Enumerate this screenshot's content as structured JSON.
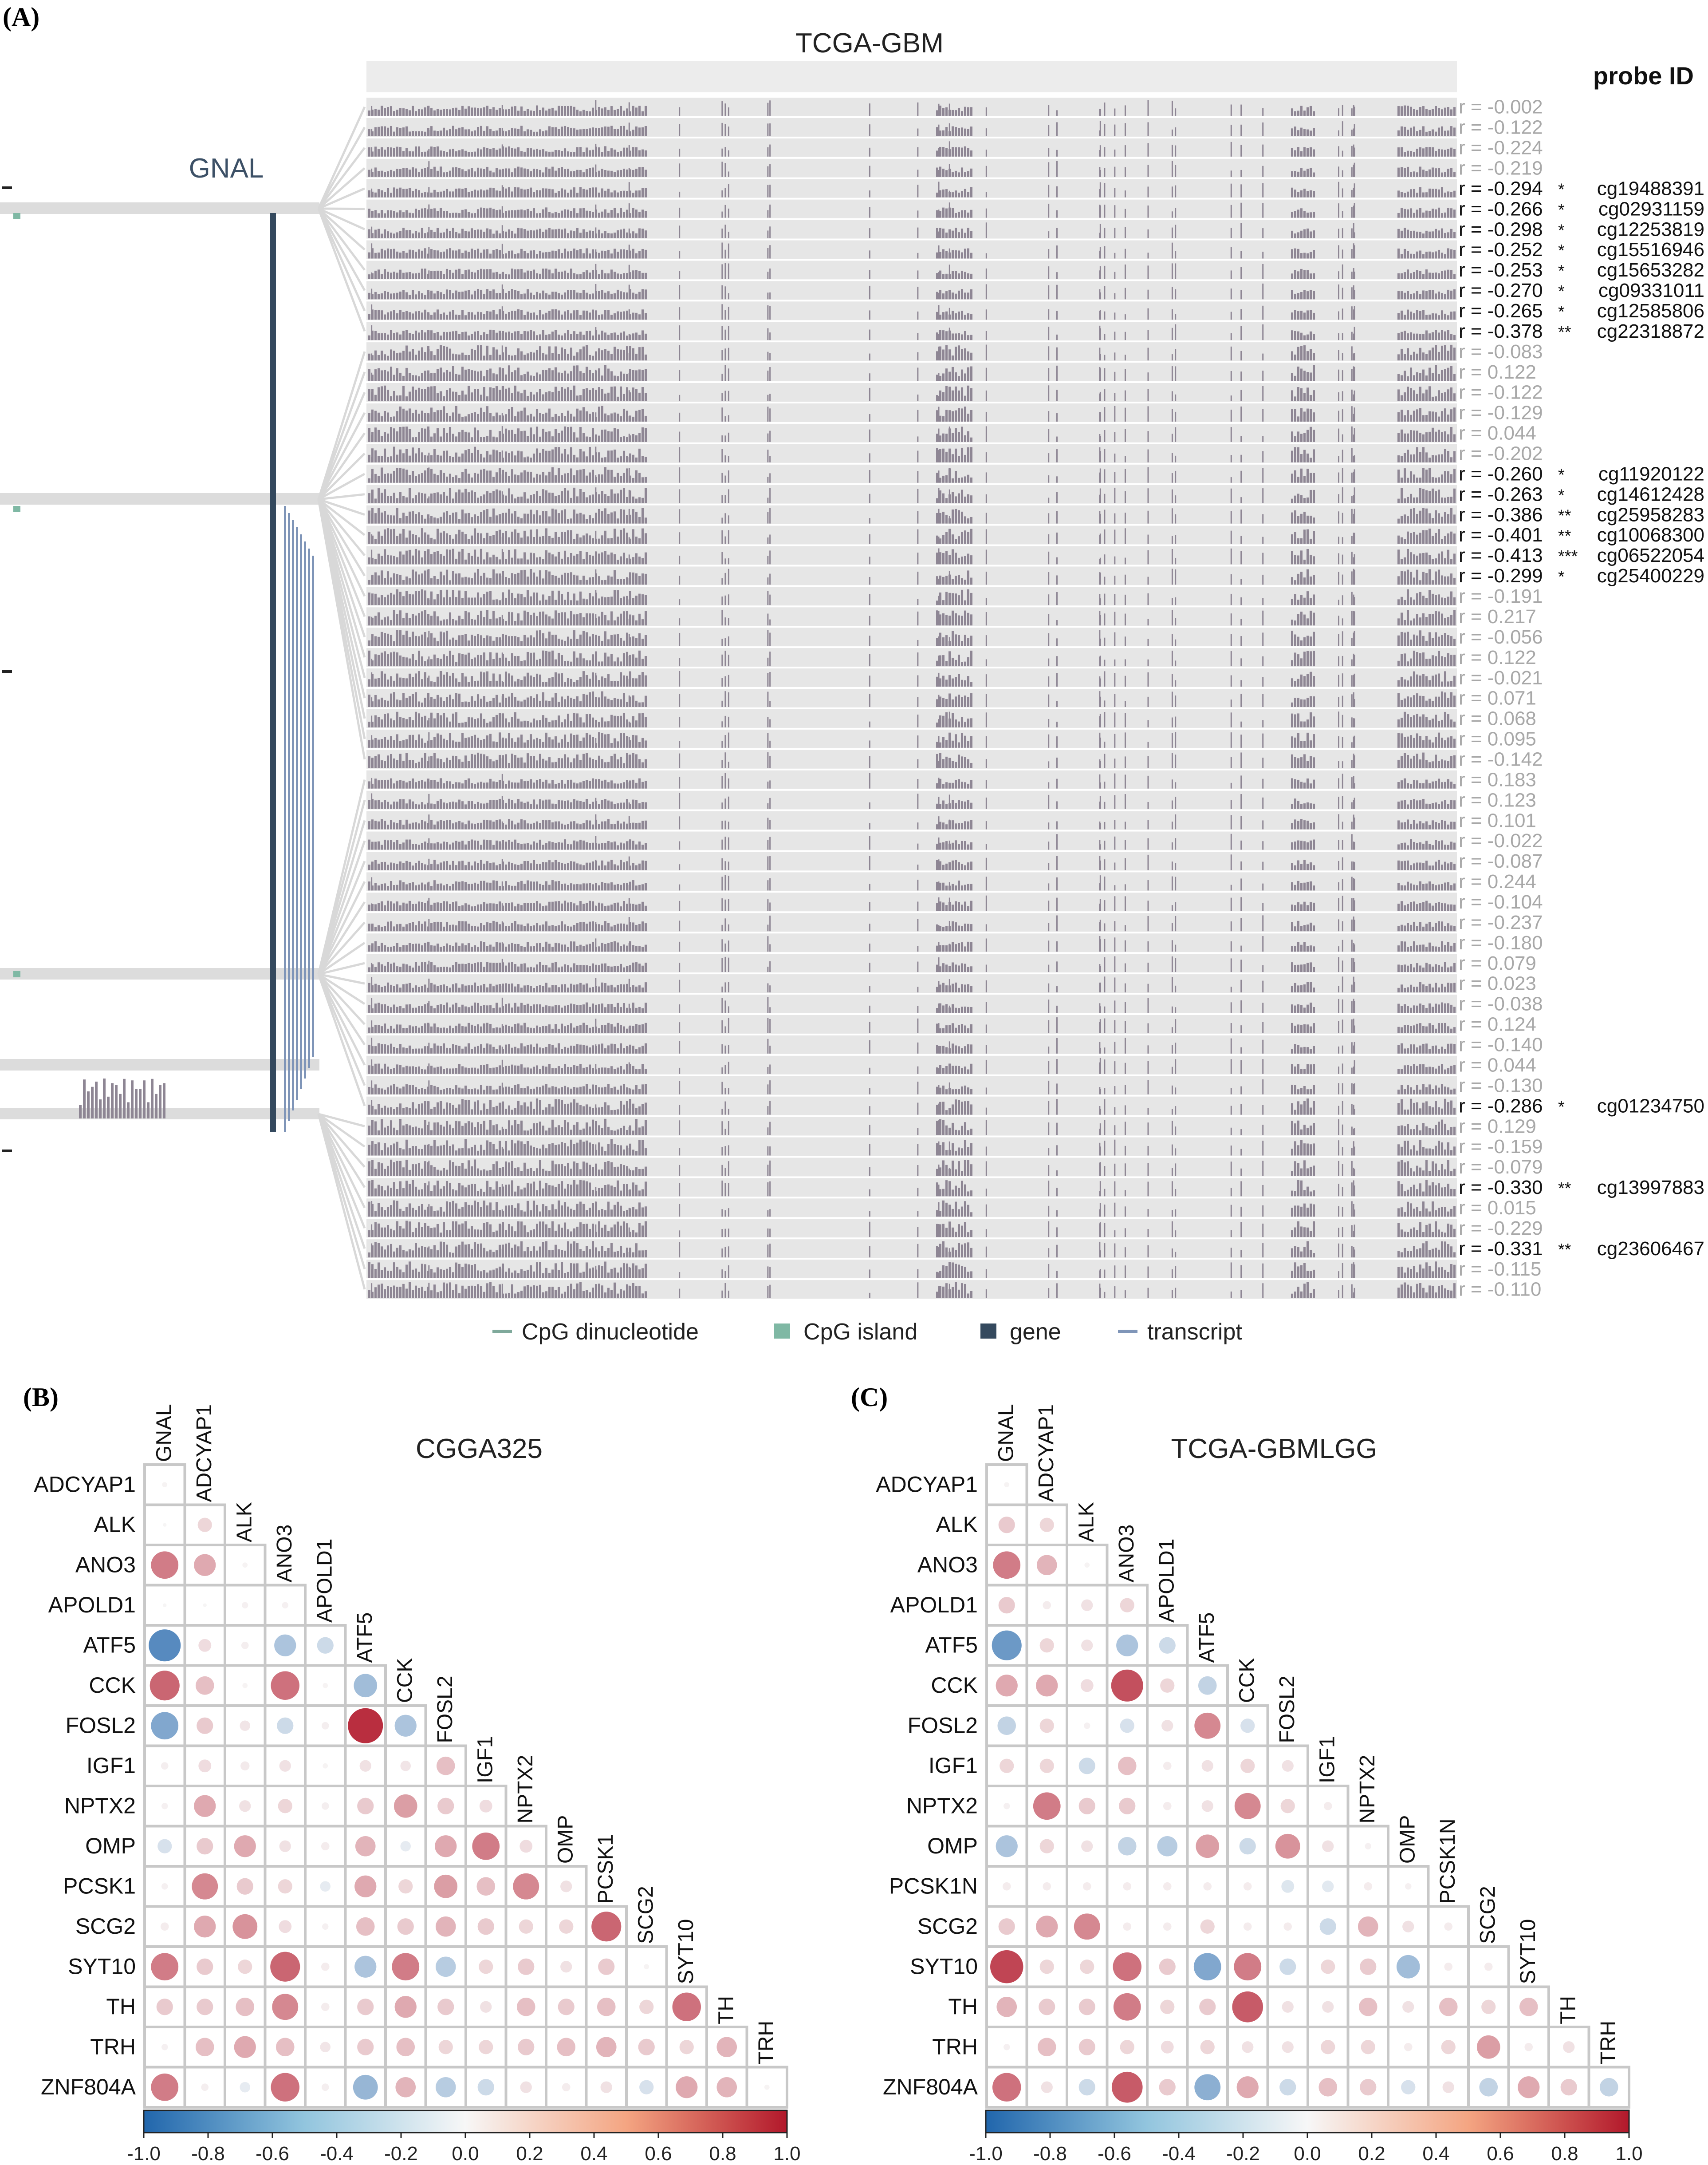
{
  "figure": {
    "panel_a": {
      "label": "(A)",
      "title": "TCGA-GBM",
      "gene_label": "GNAL",
      "probe_header": "probe ID",
      "legend": [
        {
          "label": "CpG dinucleotide",
          "color": "#7fa99b"
        },
        {
          "label": "CpG island",
          "color": "#7fb8a4"
        },
        {
          "label": "gene",
          "color": "#34495e"
        },
        {
          "label": "transcript",
          "color": "#7f95b8"
        }
      ],
      "rows": [
        {
          "r": "r = -0.002",
          "sig": "",
          "probe": ""
        },
        {
          "r": "r = -0.122",
          "sig": "",
          "probe": ""
        },
        {
          "r": "r = -0.224",
          "sig": "",
          "probe": ""
        },
        {
          "r": "r = -0.219",
          "sig": "",
          "probe": ""
        },
        {
          "r": "r = -0.294",
          "sig": "*",
          "probe": "cg19488391"
        },
        {
          "r": "r = -0.266",
          "sig": "*",
          "probe": "cg02931159"
        },
        {
          "r": "r = -0.298",
          "sig": "*",
          "probe": "cg12253819"
        },
        {
          "r": "r = -0.252",
          "sig": "*",
          "probe": "cg15516946"
        },
        {
          "r": "r = -0.253",
          "sig": "*",
          "probe": "cg15653282"
        },
        {
          "r": "r = -0.270",
          "sig": "*",
          "probe": "cg09331011"
        },
        {
          "r": "r = -0.265",
          "sig": "*",
          "probe": "cg12585806"
        },
        {
          "r": "r = -0.378",
          "sig": "**",
          "probe": "cg22318872"
        },
        {
          "r": "r = -0.083",
          "sig": "",
          "probe": ""
        },
        {
          "r": "r = 0.122",
          "sig": "",
          "probe": ""
        },
        {
          "r": "r = -0.122",
          "sig": "",
          "probe": ""
        },
        {
          "r": "r = -0.129",
          "sig": "",
          "probe": ""
        },
        {
          "r": "r = 0.044",
          "sig": "",
          "probe": ""
        },
        {
          "r": "r = -0.202",
          "sig": "",
          "probe": ""
        },
        {
          "r": "r = -0.260",
          "sig": "*",
          "probe": "cg11920122"
        },
        {
          "r": "r = -0.263",
          "sig": "*",
          "probe": "cg14612428"
        },
        {
          "r": "r = -0.386",
          "sig": "**",
          "probe": "cg25958283"
        },
        {
          "r": "r = -0.401",
          "sig": "**",
          "probe": "cg10068300"
        },
        {
          "r": "r = -0.413",
          "sig": "***",
          "probe": "cg06522054"
        },
        {
          "r": "r = -0.299",
          "sig": "*",
          "probe": "cg25400229"
        },
        {
          "r": "r = -0.191",
          "sig": "",
          "probe": ""
        },
        {
          "r": "r = 0.217",
          "sig": "",
          "probe": ""
        },
        {
          "r": "r = -0.056",
          "sig": "",
          "probe": ""
        },
        {
          "r": "r = 0.122",
          "sig": "",
          "probe": ""
        },
        {
          "r": "r = -0.021",
          "sig": "",
          "probe": ""
        },
        {
          "r": "r = 0.071",
          "sig": "",
          "probe": ""
        },
        {
          "r": "r = 0.068",
          "sig": "",
          "probe": ""
        },
        {
          "r": "r = 0.095",
          "sig": "",
          "probe": ""
        },
        {
          "r": "r = -0.142",
          "sig": "",
          "probe": ""
        },
        {
          "r": "r = 0.183",
          "sig": "",
          "probe": ""
        },
        {
          "r": "r = 0.123",
          "sig": "",
          "probe": ""
        },
        {
          "r": "r = 0.101",
          "sig": "",
          "probe": ""
        },
        {
          "r": "r = -0.022",
          "sig": "",
          "probe": ""
        },
        {
          "r": "r = -0.087",
          "sig": "",
          "probe": ""
        },
        {
          "r": "r = 0.244",
          "sig": "",
          "probe": ""
        },
        {
          "r": "r = -0.104",
          "sig": "",
          "probe": ""
        },
        {
          "r": "r = -0.237",
          "sig": "",
          "probe": ""
        },
        {
          "r": "r = -0.180",
          "sig": "",
          "probe": ""
        },
        {
          "r": "r = 0.079",
          "sig": "",
          "probe": ""
        },
        {
          "r": "r = 0.023",
          "sig": "",
          "probe": ""
        },
        {
          "r": "r = -0.038",
          "sig": "",
          "probe": ""
        },
        {
          "r": "r = 0.124",
          "sig": "",
          "probe": ""
        },
        {
          "r": "r = -0.140",
          "sig": "",
          "probe": ""
        },
        {
          "r": "r = 0.044",
          "sig": "",
          "probe": ""
        },
        {
          "r": "r = -0.130",
          "sig": "",
          "probe": ""
        },
        {
          "r": "r = -0.286",
          "sig": "*",
          "probe": "cg01234750"
        },
        {
          "r": "r = 0.129",
          "sig": "",
          "probe": ""
        },
        {
          "r": "r = -0.159",
          "sig": "",
          "probe": ""
        },
        {
          "r": "r = -0.079",
          "sig": "",
          "probe": ""
        },
        {
          "r": "r = -0.330",
          "sig": "**",
          "probe": "cg13997883"
        },
        {
          "r": "r = 0.015",
          "sig": "",
          "probe": ""
        },
        {
          "r": "r = -0.229",
          "sig": "",
          "probe": ""
        },
        {
          "r": "r = -0.331",
          "sig": "**",
          "probe": "cg23606467"
        },
        {
          "r": "r = -0.115",
          "sig": "",
          "probe": ""
        },
        {
          "r": "r = -0.110",
          "sig": "",
          "probe": ""
        }
      ]
    },
    "colors": {
      "negative": "#2166ac",
      "neutral": "#f7f7f7",
      "positive": "#b2182b",
      "track_gray": "#e6e6e6",
      "bar_gray": "#8e8694",
      "grid": "#c8c8c8"
    },
    "colorbar_ticks": [
      "-1.0",
      "-0.8",
      "-0.6",
      "-0.4",
      "-0.2",
      "0.0",
      "0.2",
      "0.4",
      "0.6",
      "0.8",
      "1.0"
    ]
  },
  "chart_data": [
    {
      "type": "heatmap",
      "panel": "(B)",
      "title": "CGGA325",
      "colorbar_range": [
        -1,
        1
      ],
      "column_labels": [
        "GNAL",
        "ADCYAP1",
        "ALK",
        "ANO3",
        "APOLD1",
        "ATF5",
        "CCK",
        "FOSL2",
        "IGF1",
        "NPTX2",
        "OMP",
        "PCSK1",
        "SCG2",
        "SYT10",
        "TH",
        "TRH"
      ],
      "row_labels": [
        "ADCYAP1",
        "ALK",
        "ANO3",
        "APOLD1",
        "ATF5",
        "CCK",
        "FOSL2",
        "IGF1",
        "NPTX2",
        "OMP",
        "PCSK1",
        "SCG2",
        "SYT10",
        "TH",
        "TRH",
        "ZNF804A"
      ],
      "values": [
        [
          0.02
        ],
        [
          0.01,
          0.15
        ],
        [
          0.55,
          0.35,
          0.02
        ],
        [
          0.01,
          0.01,
          0.03,
          0.03
        ],
        [
          -0.75,
          0.12,
          0.04,
          -0.35,
          -0.2
        ],
        [
          0.65,
          0.25,
          0.02,
          0.6,
          0.02,
          -0.4
        ],
        [
          -0.55,
          0.2,
          0.08,
          -0.2,
          0.04,
          0.9,
          -0.35
        ],
        [
          0.04,
          0.12,
          0.06,
          0.1,
          0.02,
          0.1,
          0.08,
          0.25
        ],
        [
          0.03,
          0.35,
          0.1,
          0.15,
          0.04,
          0.2,
          0.4,
          0.2,
          0.12
        ],
        [
          -0.15,
          0.2,
          0.35,
          0.1,
          0.05,
          0.3,
          -0.08,
          0.35,
          0.55,
          0.12
        ],
        [
          0.03,
          0.5,
          0.2,
          0.15,
          -0.08,
          0.35,
          0.15,
          0.4,
          0.25,
          0.5,
          0.1
        ],
        [
          0.05,
          0.35,
          0.45,
          0.12,
          0.03,
          0.25,
          0.2,
          0.3,
          0.2,
          0.15,
          0.15,
          0.65
        ],
        [
          0.55,
          0.2,
          0.15,
          0.65,
          0.05,
          -0.35,
          0.55,
          -0.3,
          0.15,
          0.2,
          0.1,
          0.2,
          0.02
        ],
        [
          0.2,
          0.2,
          0.25,
          0.5,
          0.05,
          0.2,
          0.35,
          0.2,
          0.1,
          0.25,
          0.2,
          0.25,
          0.15,
          0.6
        ],
        [
          0.03,
          0.25,
          0.35,
          0.25,
          0.08,
          0.2,
          0.25,
          0.15,
          0.15,
          0.2,
          0.25,
          0.3,
          0.2,
          0.15,
          0.3
        ],
        [
          0.55,
          0.04,
          -0.08,
          0.6,
          0.04,
          -0.45,
          0.3,
          -0.3,
          -0.2,
          0.1,
          0.05,
          0.1,
          -0.15,
          0.35,
          0.3,
          0.02
        ]
      ]
    },
    {
      "type": "heatmap",
      "panel": "(C)",
      "title": "TCGA-GBMLGG",
      "colorbar_range": [
        -1,
        1
      ],
      "column_labels": [
        "GNAL",
        "ADCYAP1",
        "ALK",
        "ANO3",
        "APOLD1",
        "ATF5",
        "CCK",
        "FOSL2",
        "IGF1",
        "NPTX2",
        "OMP",
        "PCSK1N",
        "SCG2",
        "SYT10",
        "TH",
        "TRH"
      ],
      "row_labels": [
        "ADCYAP1",
        "ALK",
        "ANO3",
        "APOLD1",
        "ATF5",
        "CCK",
        "FOSL2",
        "IGF1",
        "NPTX2",
        "OMP",
        "PCSK1N",
        "SCG2",
        "SYT10",
        "TH",
        "TRH",
        "ZNF804A"
      ],
      "values": [
        [
          0.02
        ],
        [
          0.2,
          0.15
        ],
        [
          0.55,
          0.3,
          0.02
        ],
        [
          0.2,
          0.05,
          0.1,
          0.15
        ],
        [
          -0.65,
          0.15,
          0.1,
          -0.35,
          -0.2
        ],
        [
          0.35,
          0.35,
          0.12,
          0.75,
          0.15,
          -0.25
        ],
        [
          -0.25,
          0.15,
          0.03,
          -0.15,
          0.1,
          0.5,
          -0.15
        ],
        [
          0.15,
          0.15,
          -0.2,
          0.25,
          0.05,
          0.1,
          0.15,
          0.1
        ],
        [
          0.03,
          0.55,
          0.2,
          0.2,
          0.05,
          0.1,
          0.5,
          0.15,
          0.05
        ],
        [
          -0.35,
          0.15,
          0.1,
          -0.25,
          -0.3,
          0.4,
          -0.2,
          0.45,
          0.1,
          0.03
        ],
        [
          0.05,
          0.05,
          0.05,
          0.05,
          0.05,
          0.05,
          0.05,
          -0.12,
          -0.1,
          0.05,
          0.03
        ],
        [
          0.2,
          0.35,
          0.5,
          0.05,
          0.05,
          0.15,
          0.05,
          0.05,
          -0.2,
          0.3,
          0.1,
          0.05
        ],
        [
          0.8,
          0.15,
          0.15,
          0.6,
          0.2,
          -0.55,
          0.55,
          -0.2,
          0.15,
          0.2,
          -0.4,
          0.05,
          0.05
        ],
        [
          0.3,
          0.2,
          0.2,
          0.55,
          0.15,
          0.2,
          0.7,
          0.1,
          0.1,
          0.25,
          0.1,
          0.25,
          0.15,
          0.25
        ],
        [
          0.03,
          0.25,
          0.2,
          0.15,
          0.12,
          0.15,
          0.1,
          0.1,
          0.15,
          0.15,
          0.05,
          0.15,
          0.4,
          0.05,
          0.1
        ],
        [
          0.6,
          0.1,
          -0.2,
          0.7,
          0.2,
          -0.5,
          0.35,
          -0.2,
          0.25,
          0.2,
          -0.15,
          0.1,
          -0.25,
          0.35,
          0.2,
          -0.25
        ]
      ]
    }
  ]
}
